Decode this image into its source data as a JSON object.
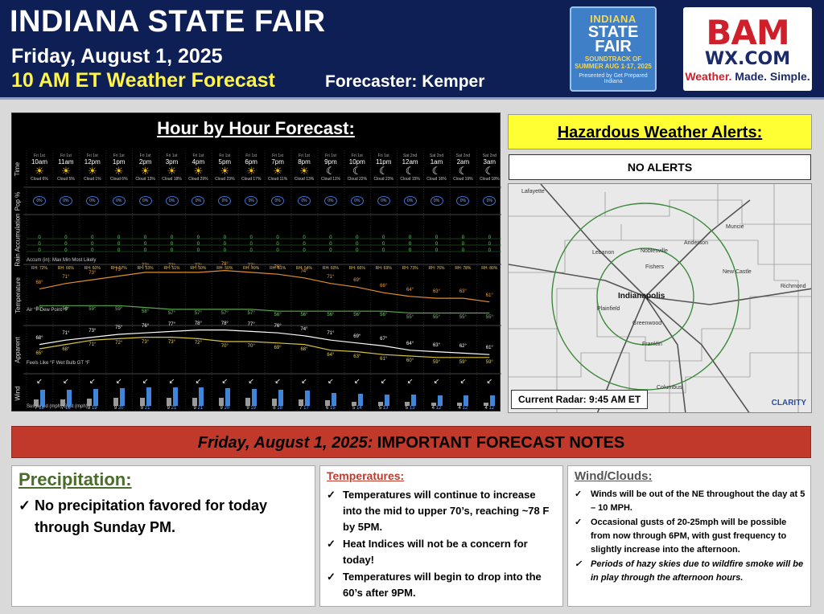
{
  "header": {
    "title": "INDIANA STATE FAIR",
    "date": "Friday, August 1, 2025",
    "forecast_time": "10 AM ET Weather Forecast",
    "forecaster": "Forecaster: Kemper",
    "fair_logo": {
      "l1": "INDIANA",
      "l2": "STATE FAIR",
      "l3": "SOUNDTRACK OF SUMMER AUG 1-17, 2025",
      "l4": "Presented by Get Prepared Indiana"
    },
    "bam_logo": {
      "b1": "BAM",
      "b2": "WX.COM",
      "b3a": "Weather.",
      "b3b": " Made. Simple."
    }
  },
  "hourly": {
    "title": "Hour by Hour Forecast:",
    "row_labels": {
      "time": "Time",
      "pop": "Pop %",
      "rain": "Rain Accumulation",
      "temp": "Temperature",
      "apparent": "Apparent",
      "wind": "Wind"
    },
    "legends": {
      "rain": "Accum (in): Max Min Most Likely",
      "temp": "Air °F  Dew Point °F",
      "apparent": "Feels Like °F  Wet Bulb GT °F",
      "wind": "Sustained (mph)   Gust (mph)"
    },
    "hours": [
      {
        "day": "Fri 1st",
        "hour": "10am",
        "icon": "sun",
        "cloud": "Cloud 6%",
        "pop": "0%",
        "rh": "RH: 72%",
        "temp": "68°",
        "dew": "59°",
        "feels": "68°",
        "wbgt": "65°",
        "wind": "7",
        "gust": "18"
      },
      {
        "day": "Fri 1st",
        "hour": "11am",
        "icon": "sun",
        "cloud": "Cloud 5%",
        "pop": "0%",
        "rh": "RH: 66%",
        "temp": "71°",
        "dew": "59°",
        "feels": "71°",
        "wbgt": "68°",
        "wind": "7",
        "gust": "18"
      },
      {
        "day": "Fri 1st",
        "hour": "12pm",
        "icon": "sun",
        "cloud": "Cloud 1%",
        "pop": "0%",
        "rh": "RH: 60%",
        "temp": "73°",
        "dew": "59°",
        "feels": "73°",
        "wbgt": "71°",
        "wind": "8",
        "gust": "19"
      },
      {
        "day": "Fri 1st",
        "hour": "1pm",
        "icon": "sun",
        "cloud": "Cloud 6%",
        "pop": "0%",
        "rh": "RH: 57%",
        "temp": "75°",
        "dew": "59°",
        "feels": "75°",
        "wbgt": "72°",
        "wind": "9",
        "gust": "20"
      },
      {
        "day": "Fri 1st",
        "hour": "2pm",
        "icon": "sun",
        "cloud": "Cloud 13%",
        "pop": "0%",
        "rh": "RH: 53%",
        "temp": "77°",
        "dew": "58°",
        "feels": "76°",
        "wbgt": "73°",
        "wind": "9",
        "gust": "21"
      },
      {
        "day": "Fri 1st",
        "hour": "3pm",
        "icon": "sun",
        "cloud": "Cloud 18%",
        "pop": "0%",
        "rh": "RH: 51%",
        "temp": "77°",
        "dew": "57°",
        "feels": "77°",
        "wbgt": "73°",
        "wind": "9",
        "gust": "21"
      },
      {
        "day": "Fri 1st",
        "hour": "4pm",
        "icon": "sun",
        "cloud": "Cloud 29%",
        "pop": "0%",
        "rh": "RH: 50%",
        "temp": "77°",
        "dew": "57°",
        "feels": "78°",
        "wbgt": "72°",
        "wind": "9",
        "gust": "21"
      },
      {
        "day": "Fri 1st",
        "hour": "5pm",
        "icon": "sun",
        "cloud": "Cloud 23%",
        "pop": "0%",
        "rh": "RH: 50%",
        "temp": "78°",
        "dew": "57°",
        "feels": "78°",
        "wbgt": "70°",
        "wind": "9",
        "gust": "20"
      },
      {
        "day": "Fri 1st",
        "hour": "6pm",
        "icon": "sun",
        "cloud": "Cloud 17%",
        "pop": "0%",
        "rh": "RH: 49%",
        "temp": "77°",
        "dew": "57°",
        "feels": "77°",
        "wbgt": "70°",
        "wind": "9",
        "gust": "19"
      },
      {
        "day": "Fri 1st",
        "hour": "7pm",
        "icon": "sun",
        "cloud": "Cloud 11%",
        "pop": "0%",
        "rh": "RH: 51%",
        "temp": "76°",
        "dew": "56°",
        "feels": "76°",
        "wbgt": "69°",
        "wind": "8",
        "gust": "18"
      },
      {
        "day": "Fri 1st",
        "hour": "8pm",
        "icon": "sun",
        "cloud": "Cloud 13%",
        "pop": "0%",
        "rh": "RH: 54%",
        "temp": "74°",
        "dew": "56°",
        "feels": "74°",
        "wbgt": "68°",
        "wind": "7",
        "gust": "17"
      },
      {
        "day": "Fri 1st",
        "hour": "9pm",
        "icon": "moon",
        "cloud": "Cloud 11%",
        "pop": "0%",
        "rh": "RH: 60%",
        "temp": "71°",
        "dew": "56°",
        "feels": "71°",
        "wbgt": "64°",
        "wind": "6",
        "gust": "15"
      },
      {
        "day": "Fri 1st",
        "hour": "10pm",
        "icon": "moon",
        "cloud": "Cloud 22%",
        "pop": "0%",
        "rh": "RH: 66%",
        "temp": "69°",
        "dew": "56°",
        "feels": "69°",
        "wbgt": "63°",
        "wind": "5",
        "gust": "14"
      },
      {
        "day": "Fri 1st",
        "hour": "11pm",
        "icon": "moon",
        "cloud": "Cloud 23%",
        "pop": "0%",
        "rh": "RH: 69%",
        "temp": "66°",
        "dew": "56°",
        "feels": "67°",
        "wbgt": "61°",
        "wind": "5",
        "gust": "13"
      },
      {
        "day": "Sat 2nd",
        "hour": "12am",
        "icon": "moon",
        "cloud": "Cloud 15%",
        "pop": "0%",
        "rh": "RH: 73%",
        "temp": "64°",
        "dew": "55°",
        "feels": "64°",
        "wbgt": "60°",
        "wind": "5",
        "gust": "13"
      },
      {
        "day": "Sat 2nd",
        "hour": "1am",
        "icon": "moon",
        "cloud": "Cloud 16%",
        "pop": "0%",
        "rh": "RH: 76%",
        "temp": "63°",
        "dew": "55°",
        "feels": "63°",
        "wbgt": "59°",
        "wind": "4",
        "gust": "12"
      },
      {
        "day": "Sat 2nd",
        "hour": "2am",
        "icon": "moon",
        "cloud": "Cloud 19%",
        "pop": "0%",
        "rh": "RH: 78%",
        "temp": "63°",
        "dew": "55°",
        "feels": "62°",
        "wbgt": "59°",
        "wind": "4",
        "gust": "12"
      },
      {
        "day": "Sat 2nd",
        "hour": "3am",
        "icon": "moon",
        "cloud": "Cloud 18%",
        "pop": "0%",
        "rh": "RH: 80%",
        "temp": "61°",
        "dew": "55°",
        "feels": "61°",
        "wbgt": "59°",
        "wind": "4",
        "gust": "12"
      }
    ]
  },
  "alerts": {
    "title": "Hazardous Weather Alerts:",
    "status": "NO ALERTS"
  },
  "radar": {
    "label": "Current Radar: 9:45 AM ET",
    "brand": "CLARITY",
    "towns": [
      "Lafayette",
      "Noblesville",
      "Anderson",
      "Muncie",
      "Lebanon",
      "Fishers",
      "New Castle",
      "Richmond",
      "Plainfield",
      "Greenwood",
      "Franklin",
      "Columbus"
    ],
    "city": "Indianapolis"
  },
  "notes": {
    "banner_italic": "Friday, August 1, 2025:",
    "banner_rest": " IMPORTANT FORECAST NOTES",
    "precip": {
      "title": "Precipitation:",
      "items": [
        "No precipitation favored for today through Sunday PM."
      ]
    },
    "temps": {
      "title": "Temperatures:",
      "items": [
        "Temperatures will continue to increase into the mid to upper 70’s, reaching ~78 F by 5PM.",
        "Heat Indices will not be a concern for today!",
        "Temperatures will begin to drop into the 60’s after 9PM."
      ]
    },
    "wind": {
      "title": "Wind/Clouds:",
      "items": [
        "Winds will be out of the NE throughout the day at 5 – 10 MPH.",
        "Occasional gusts of 20-25mph will be possible from now through 6PM, with gust frequency to slightly increase into the afternoon.",
        "Periods of hazy skies due to wildfire smoke will be in play through the afternoon hours."
      ]
    }
  },
  "colors": {
    "header_bg": "#0e1f55",
    "forecast_time": "#fff44a",
    "alert_bg": "#ffff33",
    "banner_red": "#c0392b"
  }
}
